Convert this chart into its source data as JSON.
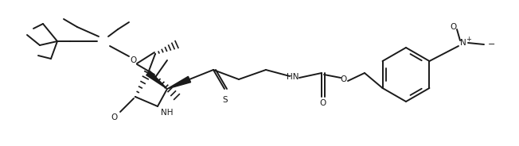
{
  "background": "#ffffff",
  "line_color": "#1a1a1a",
  "line_width": 1.4,
  "fig_width": 6.52,
  "fig_height": 1.84,
  "dpi": 100,
  "xlim": [
    0,
    652
  ],
  "ylim": [
    0,
    184
  ]
}
